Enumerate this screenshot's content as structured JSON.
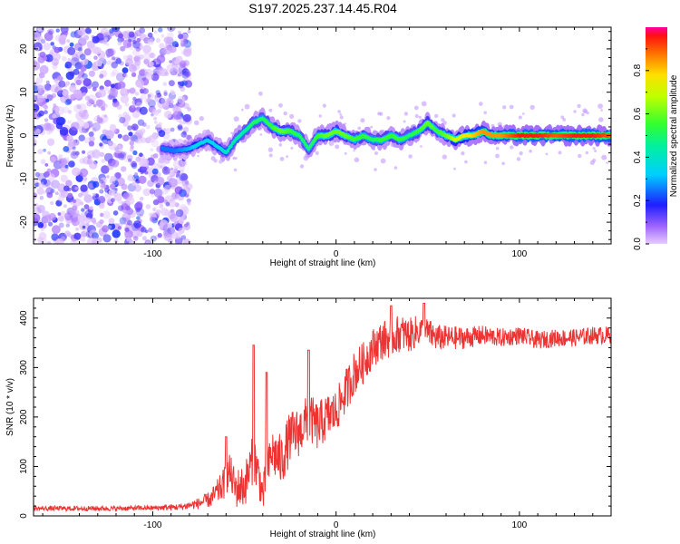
{
  "title": "S197.2025.237.14.45.R04",
  "chart_data": [
    {
      "type": "heatmap",
      "name": "spectrogram",
      "xlabel": "Height of straight line (km)",
      "ylabel": "Frequency (Hz)",
      "xlim": [
        -165,
        150
      ],
      "ylim": [
        -25,
        25
      ],
      "xticks": [
        -100,
        0,
        100
      ],
      "xtick_labels": [
        "-100",
        "0",
        "100"
      ],
      "yticks": [
        -20,
        -10,
        0,
        10,
        20
      ],
      "ytick_labels": [
        "-20",
        "-10",
        "0",
        "10",
        "20"
      ],
      "noise_region_x": [
        -165,
        -80
      ],
      "ridge": {
        "x": [
          -95,
          -88,
          -80,
          -75,
          -70,
          -65,
          -60,
          -55,
          -50,
          -45,
          -40,
          -35,
          -30,
          -25,
          -20,
          -15,
          -10,
          -5,
          0,
          5,
          10,
          15,
          20,
          25,
          30,
          35,
          40,
          45,
          50,
          55,
          60,
          65,
          70,
          75,
          80,
          85,
          90,
          95,
          100,
          110,
          120,
          130,
          140,
          150
        ],
        "frequency": [
          -3,
          -3.5,
          -3,
          -2,
          -1,
          -2.5,
          -4,
          -1,
          1,
          3,
          4,
          2,
          1,
          1,
          0,
          -3,
          0,
          0,
          1,
          0,
          -1,
          0,
          -1,
          -1,
          0,
          -1,
          0,
          1,
          3,
          1,
          0,
          -1,
          0,
          0,
          1,
          0,
          0,
          0,
          0,
          0,
          0,
          0,
          0,
          0
        ],
        "amplitude": [
          0.25,
          0.25,
          0.3,
          0.35,
          0.35,
          0.35,
          0.4,
          0.45,
          0.45,
          0.5,
          0.5,
          0.55,
          0.6,
          0.55,
          0.5,
          0.5,
          0.55,
          0.6,
          0.6,
          0.6,
          0.55,
          0.55,
          0.5,
          0.55,
          0.55,
          0.55,
          0.5,
          0.55,
          0.6,
          0.55,
          0.6,
          0.7,
          0.75,
          0.8,
          0.85,
          0.85,
          0.85,
          0.9,
          0.95,
          0.95,
          0.9,
          0.95,
          0.95,
          0.9
        ]
      },
      "colorbar": {
        "label": "Normalized spectral amplitude",
        "range": [
          0,
          1
        ],
        "ticks": [
          0.0,
          0.2,
          0.4,
          0.6,
          0.8
        ],
        "tick_labels": [
          "0.0",
          "0.2",
          "0.4",
          "0.6",
          "0.8"
        ]
      }
    },
    {
      "type": "line",
      "name": "snr",
      "xlabel": "Height of straight line (km)",
      "ylabel": "SNR (10 * v/v)",
      "xlim": [
        -165,
        150
      ],
      "ylim": [
        0,
        440
      ],
      "xticks": [
        -100,
        0,
        100
      ],
      "xtick_labels": [
        "-100",
        "0",
        "100"
      ],
      "yticks": [
        0,
        100,
        200,
        300,
        400
      ],
      "ytick_labels": [
        "0",
        "100",
        "200",
        "300",
        "400"
      ],
      "color": "#ee3333",
      "trend": {
        "x": [
          -165,
          -140,
          -120,
          -100,
          -85,
          -75,
          -68,
          -62,
          -58,
          -55,
          -50,
          -45,
          -42,
          -40,
          -35,
          -30,
          -25,
          -20,
          -15,
          -10,
          -5,
          0,
          5,
          10,
          15,
          20,
          25,
          30,
          35,
          40,
          45,
          50,
          55,
          60,
          70,
          80,
          90,
          100,
          110,
          120,
          130,
          140,
          150
        ],
        "y": [
          15,
          15,
          15,
          16,
          18,
          25,
          35,
          60,
          90,
          55,
          60,
          120,
          80,
          40,
          130,
          110,
          160,
          170,
          200,
          180,
          200,
          210,
          250,
          290,
          310,
          340,
          355,
          360,
          370,
          365,
          375,
          370,
          360,
          360,
          360,
          365,
          360,
          365,
          355,
          360,
          360,
          365,
          365
        ]
      },
      "noise": {
        "x": [
          -165,
          -100,
          -80,
          -70,
          -60,
          -55,
          -45,
          -40,
          -30,
          -20,
          -10,
          0,
          10,
          20,
          30,
          40,
          50,
          60,
          80,
          100,
          150
        ],
        "amplitude": [
          5,
          5,
          8,
          15,
          35,
          40,
          50,
          40,
          55,
          50,
          50,
          45,
          45,
          40,
          40,
          35,
          30,
          25,
          20,
          18,
          18
        ]
      },
      "peaks": [
        {
          "x": -60,
          "y": 160
        },
        {
          "x": -45,
          "y": 345
        },
        {
          "x": -38,
          "y": 290
        },
        {
          "x": -15,
          "y": 335
        },
        {
          "x": 30,
          "y": 425
        },
        {
          "x": 48,
          "y": 430
        }
      ]
    }
  ]
}
